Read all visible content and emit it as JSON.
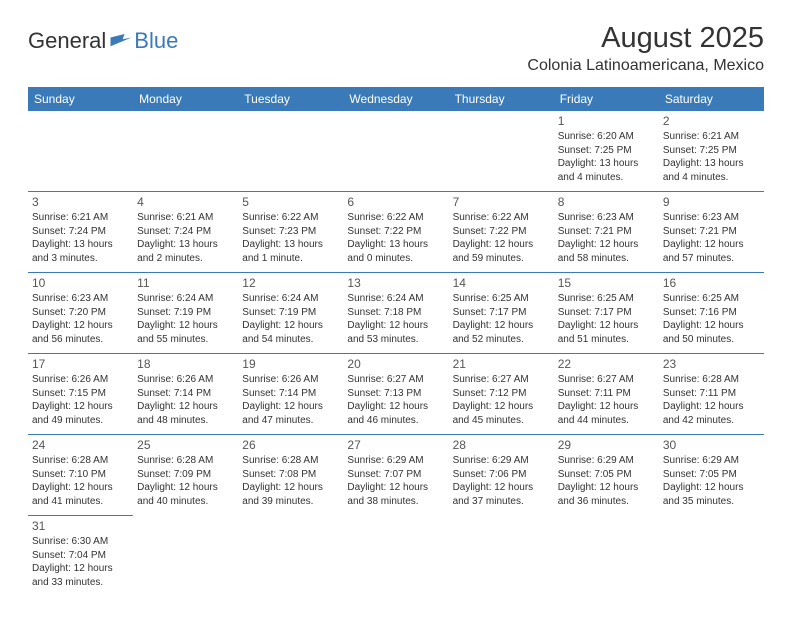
{
  "logo": {
    "text1": "General",
    "text2": "Blue"
  },
  "title": "August 2025",
  "location": "Colonia Latinoamericana, Mexico",
  "colors": {
    "header_bg": "#3a7ab8",
    "header_fg": "#ffffff",
    "text": "#333333",
    "border": "#3a7ab8"
  },
  "day_headers": [
    "Sunday",
    "Monday",
    "Tuesday",
    "Wednesday",
    "Thursday",
    "Friday",
    "Saturday"
  ],
  "weeks": [
    [
      null,
      null,
      null,
      null,
      null,
      {
        "n": "1",
        "sr": "Sunrise: 6:20 AM",
        "ss": "Sunset: 7:25 PM",
        "d1": "Daylight: 13 hours",
        "d2": "and 4 minutes."
      },
      {
        "n": "2",
        "sr": "Sunrise: 6:21 AM",
        "ss": "Sunset: 7:25 PM",
        "d1": "Daylight: 13 hours",
        "d2": "and 4 minutes."
      }
    ],
    [
      {
        "n": "3",
        "sr": "Sunrise: 6:21 AM",
        "ss": "Sunset: 7:24 PM",
        "d1": "Daylight: 13 hours",
        "d2": "and 3 minutes."
      },
      {
        "n": "4",
        "sr": "Sunrise: 6:21 AM",
        "ss": "Sunset: 7:24 PM",
        "d1": "Daylight: 13 hours",
        "d2": "and 2 minutes."
      },
      {
        "n": "5",
        "sr": "Sunrise: 6:22 AM",
        "ss": "Sunset: 7:23 PM",
        "d1": "Daylight: 13 hours",
        "d2": "and 1 minute."
      },
      {
        "n": "6",
        "sr": "Sunrise: 6:22 AM",
        "ss": "Sunset: 7:22 PM",
        "d1": "Daylight: 13 hours",
        "d2": "and 0 minutes."
      },
      {
        "n": "7",
        "sr": "Sunrise: 6:22 AM",
        "ss": "Sunset: 7:22 PM",
        "d1": "Daylight: 12 hours",
        "d2": "and 59 minutes."
      },
      {
        "n": "8",
        "sr": "Sunrise: 6:23 AM",
        "ss": "Sunset: 7:21 PM",
        "d1": "Daylight: 12 hours",
        "d2": "and 58 minutes."
      },
      {
        "n": "9",
        "sr": "Sunrise: 6:23 AM",
        "ss": "Sunset: 7:21 PM",
        "d1": "Daylight: 12 hours",
        "d2": "and 57 minutes."
      }
    ],
    [
      {
        "n": "10",
        "sr": "Sunrise: 6:23 AM",
        "ss": "Sunset: 7:20 PM",
        "d1": "Daylight: 12 hours",
        "d2": "and 56 minutes."
      },
      {
        "n": "11",
        "sr": "Sunrise: 6:24 AM",
        "ss": "Sunset: 7:19 PM",
        "d1": "Daylight: 12 hours",
        "d2": "and 55 minutes."
      },
      {
        "n": "12",
        "sr": "Sunrise: 6:24 AM",
        "ss": "Sunset: 7:19 PM",
        "d1": "Daylight: 12 hours",
        "d2": "and 54 minutes."
      },
      {
        "n": "13",
        "sr": "Sunrise: 6:24 AM",
        "ss": "Sunset: 7:18 PM",
        "d1": "Daylight: 12 hours",
        "d2": "and 53 minutes."
      },
      {
        "n": "14",
        "sr": "Sunrise: 6:25 AM",
        "ss": "Sunset: 7:17 PM",
        "d1": "Daylight: 12 hours",
        "d2": "and 52 minutes."
      },
      {
        "n": "15",
        "sr": "Sunrise: 6:25 AM",
        "ss": "Sunset: 7:17 PM",
        "d1": "Daylight: 12 hours",
        "d2": "and 51 minutes."
      },
      {
        "n": "16",
        "sr": "Sunrise: 6:25 AM",
        "ss": "Sunset: 7:16 PM",
        "d1": "Daylight: 12 hours",
        "d2": "and 50 minutes."
      }
    ],
    [
      {
        "n": "17",
        "sr": "Sunrise: 6:26 AM",
        "ss": "Sunset: 7:15 PM",
        "d1": "Daylight: 12 hours",
        "d2": "and 49 minutes."
      },
      {
        "n": "18",
        "sr": "Sunrise: 6:26 AM",
        "ss": "Sunset: 7:14 PM",
        "d1": "Daylight: 12 hours",
        "d2": "and 48 minutes."
      },
      {
        "n": "19",
        "sr": "Sunrise: 6:26 AM",
        "ss": "Sunset: 7:14 PM",
        "d1": "Daylight: 12 hours",
        "d2": "and 47 minutes."
      },
      {
        "n": "20",
        "sr": "Sunrise: 6:27 AM",
        "ss": "Sunset: 7:13 PM",
        "d1": "Daylight: 12 hours",
        "d2": "and 46 minutes."
      },
      {
        "n": "21",
        "sr": "Sunrise: 6:27 AM",
        "ss": "Sunset: 7:12 PM",
        "d1": "Daylight: 12 hours",
        "d2": "and 45 minutes."
      },
      {
        "n": "22",
        "sr": "Sunrise: 6:27 AM",
        "ss": "Sunset: 7:11 PM",
        "d1": "Daylight: 12 hours",
        "d2": "and 44 minutes."
      },
      {
        "n": "23",
        "sr": "Sunrise: 6:28 AM",
        "ss": "Sunset: 7:11 PM",
        "d1": "Daylight: 12 hours",
        "d2": "and 42 minutes."
      }
    ],
    [
      {
        "n": "24",
        "sr": "Sunrise: 6:28 AM",
        "ss": "Sunset: 7:10 PM",
        "d1": "Daylight: 12 hours",
        "d2": "and 41 minutes."
      },
      {
        "n": "25",
        "sr": "Sunrise: 6:28 AM",
        "ss": "Sunset: 7:09 PM",
        "d1": "Daylight: 12 hours",
        "d2": "and 40 minutes."
      },
      {
        "n": "26",
        "sr": "Sunrise: 6:28 AM",
        "ss": "Sunset: 7:08 PM",
        "d1": "Daylight: 12 hours",
        "d2": "and 39 minutes."
      },
      {
        "n": "27",
        "sr": "Sunrise: 6:29 AM",
        "ss": "Sunset: 7:07 PM",
        "d1": "Daylight: 12 hours",
        "d2": "and 38 minutes."
      },
      {
        "n": "28",
        "sr": "Sunrise: 6:29 AM",
        "ss": "Sunset: 7:06 PM",
        "d1": "Daylight: 12 hours",
        "d2": "and 37 minutes."
      },
      {
        "n": "29",
        "sr": "Sunrise: 6:29 AM",
        "ss": "Sunset: 7:05 PM",
        "d1": "Daylight: 12 hours",
        "d2": "and 36 minutes."
      },
      {
        "n": "30",
        "sr": "Sunrise: 6:29 AM",
        "ss": "Sunset: 7:05 PM",
        "d1": "Daylight: 12 hours",
        "d2": "and 35 minutes."
      }
    ],
    [
      {
        "n": "31",
        "sr": "Sunrise: 6:30 AM",
        "ss": "Sunset: 7:04 PM",
        "d1": "Daylight: 12 hours",
        "d2": "and 33 minutes."
      },
      null,
      null,
      null,
      null,
      null,
      null
    ]
  ]
}
